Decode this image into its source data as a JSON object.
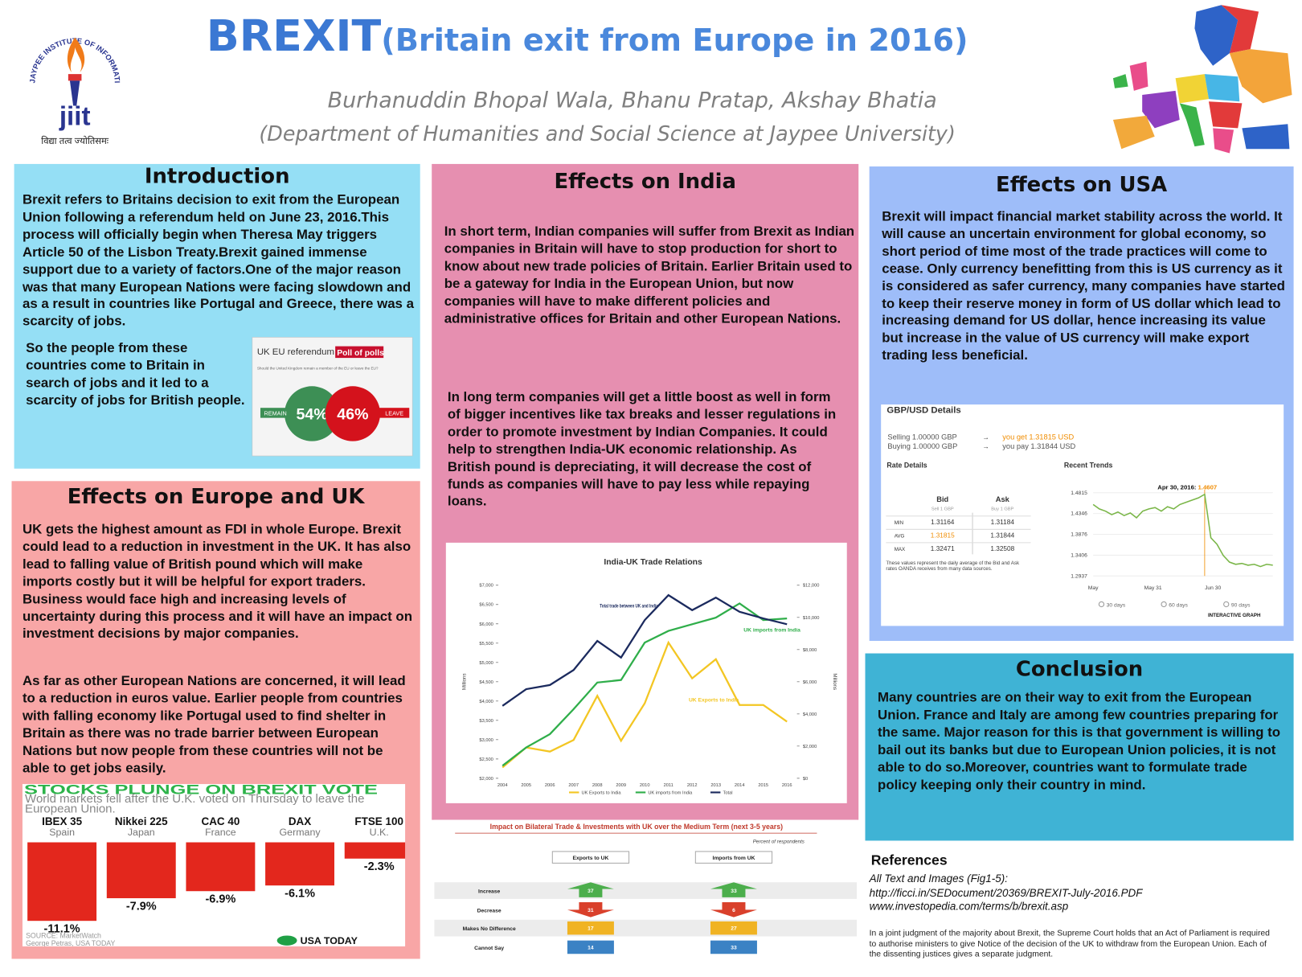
{
  "header": {
    "title_main": "BREXIT",
    "title_rest": "(Britain exit from Europe in 2016)",
    "authors": "Burhanuddin Bhopal Wala, Bhanu Pratap, Akshay Bhatia",
    "department": "(Department of Humanities and Social Science at Jaypee University)"
  },
  "logo": {
    "arc_text": "JAYPEE INSTITUTE OF INFORMATION TECHNOLOGY",
    "short": "jiit",
    "motto": "विद्या तत्व ज्योतिसमः"
  },
  "introduction": {
    "heading": "Introduction",
    "paragraphs": [
      "Brexit refers to Britains decision to exit from the European Union following a referendum held on June 23, 2016.This process will officially begin when Theresa May triggers Article 50 of the Lisbon Treaty.Brexit gained immense support due to a variety of factors.One of the major reason was that many European Nations were facing slowdown and as a result in countries like Portugal and Greece, there was a scarcity of jobs.",
      "So the people from these countries come to Britain in search of jobs and it led to a scarcity of jobs for British people."
    ]
  },
  "poll_figure": {
    "title": "UK EU referendum",
    "title_highlight": "Poll of polls",
    "question": "Should the United Kingdom remain a member of the EU or leave the EU?",
    "categories": [
      "REMAIN",
      "LEAVE"
    ],
    "values": [
      54,
      46
    ],
    "value_labels": [
      "54%",
      "46%"
    ],
    "colors": [
      "#3d8f55",
      "#d4121c"
    ]
  },
  "europe_uk": {
    "heading": "Effects on Europe and UK",
    "paragraphs": [
      "UK gets the highest amount as FDI in whole Europe. Brexit could lead to a reduction in investment in the UK. It has also lead to falling value of British pound which will make imports costly but it will be helpful for export traders. Business would face high and increasing levels of uncertainty during this process and it will have an impact on investment decisions by major companies.",
      "As far as other European Nations are concerned, it will lead to a reduction in euros value. Earlier people from countries with falling economy like Portugal used to find shelter in Britain as there was no trade barrier between European Nations but now people from these countries will not be able to get jobs easily."
    ]
  },
  "stocks_chart": {
    "type": "bar",
    "title": "STOCKS PLUNGE ON BREXIT VOTE",
    "subtitle": "World markets fell after the U.K. voted on Thursday to leave the European Union.",
    "categories": [
      "IBEX 35",
      "Nikkei 225",
      "CAC 40",
      "DAX",
      "FTSE 100"
    ],
    "countries": [
      "Spain",
      "Japan",
      "France",
      "Germany",
      "U.K."
    ],
    "values": [
      -11.1,
      -7.9,
      -6.9,
      -6.1,
      -2.3
    ],
    "value_labels": [
      "-11.1%",
      "-7.9%",
      "-6.9%",
      "-6.1%",
      "-2.3%"
    ],
    "color": "#e3271d",
    "ylim": [
      -12,
      0
    ],
    "source": "SOURCE: MarketWatch",
    "credit": "George Petras, USA TODAY",
    "brand": "USA TODAY"
  },
  "india": {
    "heading": "Effects on India",
    "paragraphs": [
      "In short term, Indian companies will suffer from Brexit as Indian companies in Britain will have to stop production for short to know about new trade policies of Britain. Earlier Britain used to be a gateway for India in the European Union, but now companies will have to make different policies and administrative offices for Britain and other European Nations.",
      "In long term companies will get a little boost as well in form of bigger incentives like tax breaks and lesser regulations in order to promote investment by Indian Companies. It could help to strengthen India-UK economic relationship. As British pound is depreciating, it will decrease the cost of funds as companies will have to pay less while repaying loans."
    ]
  },
  "india_chart": {
    "type": "line",
    "title": "India-UK Trade Relations",
    "y_label": "Millions",
    "y2_label": "Millions",
    "categories": [
      "2004",
      "2005",
      "2006",
      "2007",
      "2008",
      "2009",
      "2010",
      "2011",
      "2012",
      "2013",
      "2014",
      "2015",
      "2016"
    ],
    "series": [
      {
        "name": "UK Exports to India",
        "color": "#f3c623",
        "values": [
          2280,
          2797,
          2690,
          2991,
          4134,
          2970,
          3940,
          5513,
          4586,
          5082,
          3897,
          3897,
          3466
        ]
      },
      {
        "name": "UK imports from India",
        "color": "#2fae4a",
        "values": [
          2323,
          2797,
          3142,
          3789,
          4478,
          4543,
          5513,
          5815,
          5987,
          6159,
          6526,
          6095,
          6138
        ]
      },
      {
        "name": "Total",
        "color": "#1b2a5e",
        "values": [
          3875,
          4306,
          4414,
          4802,
          5556,
          5125,
          6095,
          6741,
          6353,
          6677,
          6310,
          6138,
          5987
        ]
      }
    ],
    "annotations": [
      "Total trade between UK and India",
      "UK imports from India",
      "UK Exports to India"
    ],
    "ylim": [
      2000,
      7000
    ],
    "yticks": [
      {
        "value": 2000,
        "label": "$2,000"
      },
      {
        "value": 2500,
        "label": "$2,500"
      },
      {
        "value": 3000,
        "label": "$3,000"
      },
      {
        "value": 3500,
        "label": "$3,500"
      },
      {
        "value": 4000,
        "label": "$4,000"
      },
      {
        "value": 4500,
        "label": "$4,500"
      },
      {
        "value": 5000,
        "label": "$5,000"
      },
      {
        "value": 5500,
        "label": "$5,500"
      },
      {
        "value": 6000,
        "label": "$6,000"
      },
      {
        "value": 6500,
        "label": "$6,500"
      },
      {
        "value": 7000,
        "label": "$7,000"
      }
    ],
    "y2lim": [
      0,
      12000
    ],
    "y2ticks": [
      {
        "value": 0,
        "label": "$0"
      },
      {
        "value": 2000,
        "label": "$2,000"
      },
      {
        "value": 4000,
        "label": "$4,000"
      },
      {
        "value": 6000,
        "label": "$6,000"
      },
      {
        "value": 8000,
        "label": "$8,000"
      },
      {
        "value": 10000,
        "label": "$10,000"
      },
      {
        "value": 12000,
        "label": "$12,000"
      }
    ]
  },
  "bilateral_chart": {
    "title": "Impact on Bilateral Trade & Investments with UK over the Medium Term (next 3-5 years)",
    "note": "Percent of respondents",
    "columns": [
      "Exports to UK",
      "Imports from UK"
    ],
    "rows": [
      "Increase",
      "Decrease",
      "Makes No Difference",
      "Cannot Say"
    ],
    "exports": [
      37,
      31,
      17,
      14
    ],
    "imports": [
      33,
      6,
      27,
      33
    ],
    "colors": [
      "#4cae4c",
      "#d9402b",
      "#f0b323",
      "#3b82c4"
    ]
  },
  "usa": {
    "heading": "Effects on USA",
    "paragraphs": [
      "Brexit will impact financial market stability across the world. It will cause an uncertain environment for global economy, so short period of time most of the trade practices will come to cease. Only currency benefitting from this is US currency as it is considered as safer currency, many companies have started to keep their reserve money in form of US dollar which lead to increasing demand for US dollar, hence increasing its value but increase in the value of US currency will make export trading less beneficial."
    ]
  },
  "gbp_figure": {
    "title": "GBP/USD Details",
    "selling": "Selling 1.00000 GBP",
    "you_get": "you get 1.31815 USD",
    "buying": "Buying 1.00000 GBP",
    "you_pay": "you pay 1.31844 USD",
    "rate_heading": "Rate Details",
    "bid": "Bid",
    "ask": "Ask",
    "bid_sub": "Sell 1 GBP",
    "ask_sub": "Buy 1 GBP",
    "table": [
      [
        "MIN",
        "1.31164",
        "1.31184"
      ],
      [
        "AVG",
        "1.31815",
        "1.31844"
      ],
      [
        "MAX",
        "1.32471",
        "1.32508"
      ]
    ],
    "table_note": "These values represent the daily average of the Bid and Ask rates OANDA receives from many data sources.",
    "trend": {
      "type": "line",
      "title": "Recent Trends",
      "marker_label": "Apr 30, 2016:",
      "marker_value": "1.4607",
      "color": "#7ab648",
      "values": [
        1.455,
        1.445,
        1.44,
        1.432,
        1.438,
        1.43,
        1.436,
        1.425,
        1.44,
        1.445,
        1.448,
        1.44,
        1.45,
        1.445,
        1.455,
        1.46,
        1.465,
        1.47,
        1.478,
        1.38,
        1.365,
        1.34,
        1.325,
        1.32,
        1.322,
        1.318,
        1.32,
        1.315,
        1.32,
        1.318
      ],
      "ylim": [
        1.2937,
        1.4815
      ],
      "yticks": [
        1.2937,
        1.3406,
        1.3876,
        1.4346,
        1.4815
      ],
      "xlabels": [
        "May",
        "May 31",
        "Jun 30"
      ],
      "ranges": [
        "30 days",
        "60 days",
        "90 days"
      ],
      "link": "INTERACTIVE GRAPH"
    }
  },
  "conclusion": {
    "heading": "Conclusion",
    "paragraphs": [
      "Many countries are on their way to exit from the European Union. France and Italy are among few countries preparing for the same. Major reason for this is that government is willing to bail out its banks but due to European Union policies, it is not able to do so.Moreover, countries want to formulate trade policy keeping only their country in mind."
    ]
  },
  "references": {
    "heading": "References",
    "lines": [
      "All Text and Images (Fig1-5):",
      "http://ficci.in/SEDocument/20369/BREXIT-July-2016.PDF",
      "www.investopedia.com/terms/b/brexit.asp"
    ],
    "note": "In a joint judgment of the majority about Brexit, the Supreme Court holds that an Act of Parliament is required to authorise ministers to give Notice of the decision of the UK to withdraw from the European Union. Each of the dissenting justices gives a separate judgment."
  }
}
